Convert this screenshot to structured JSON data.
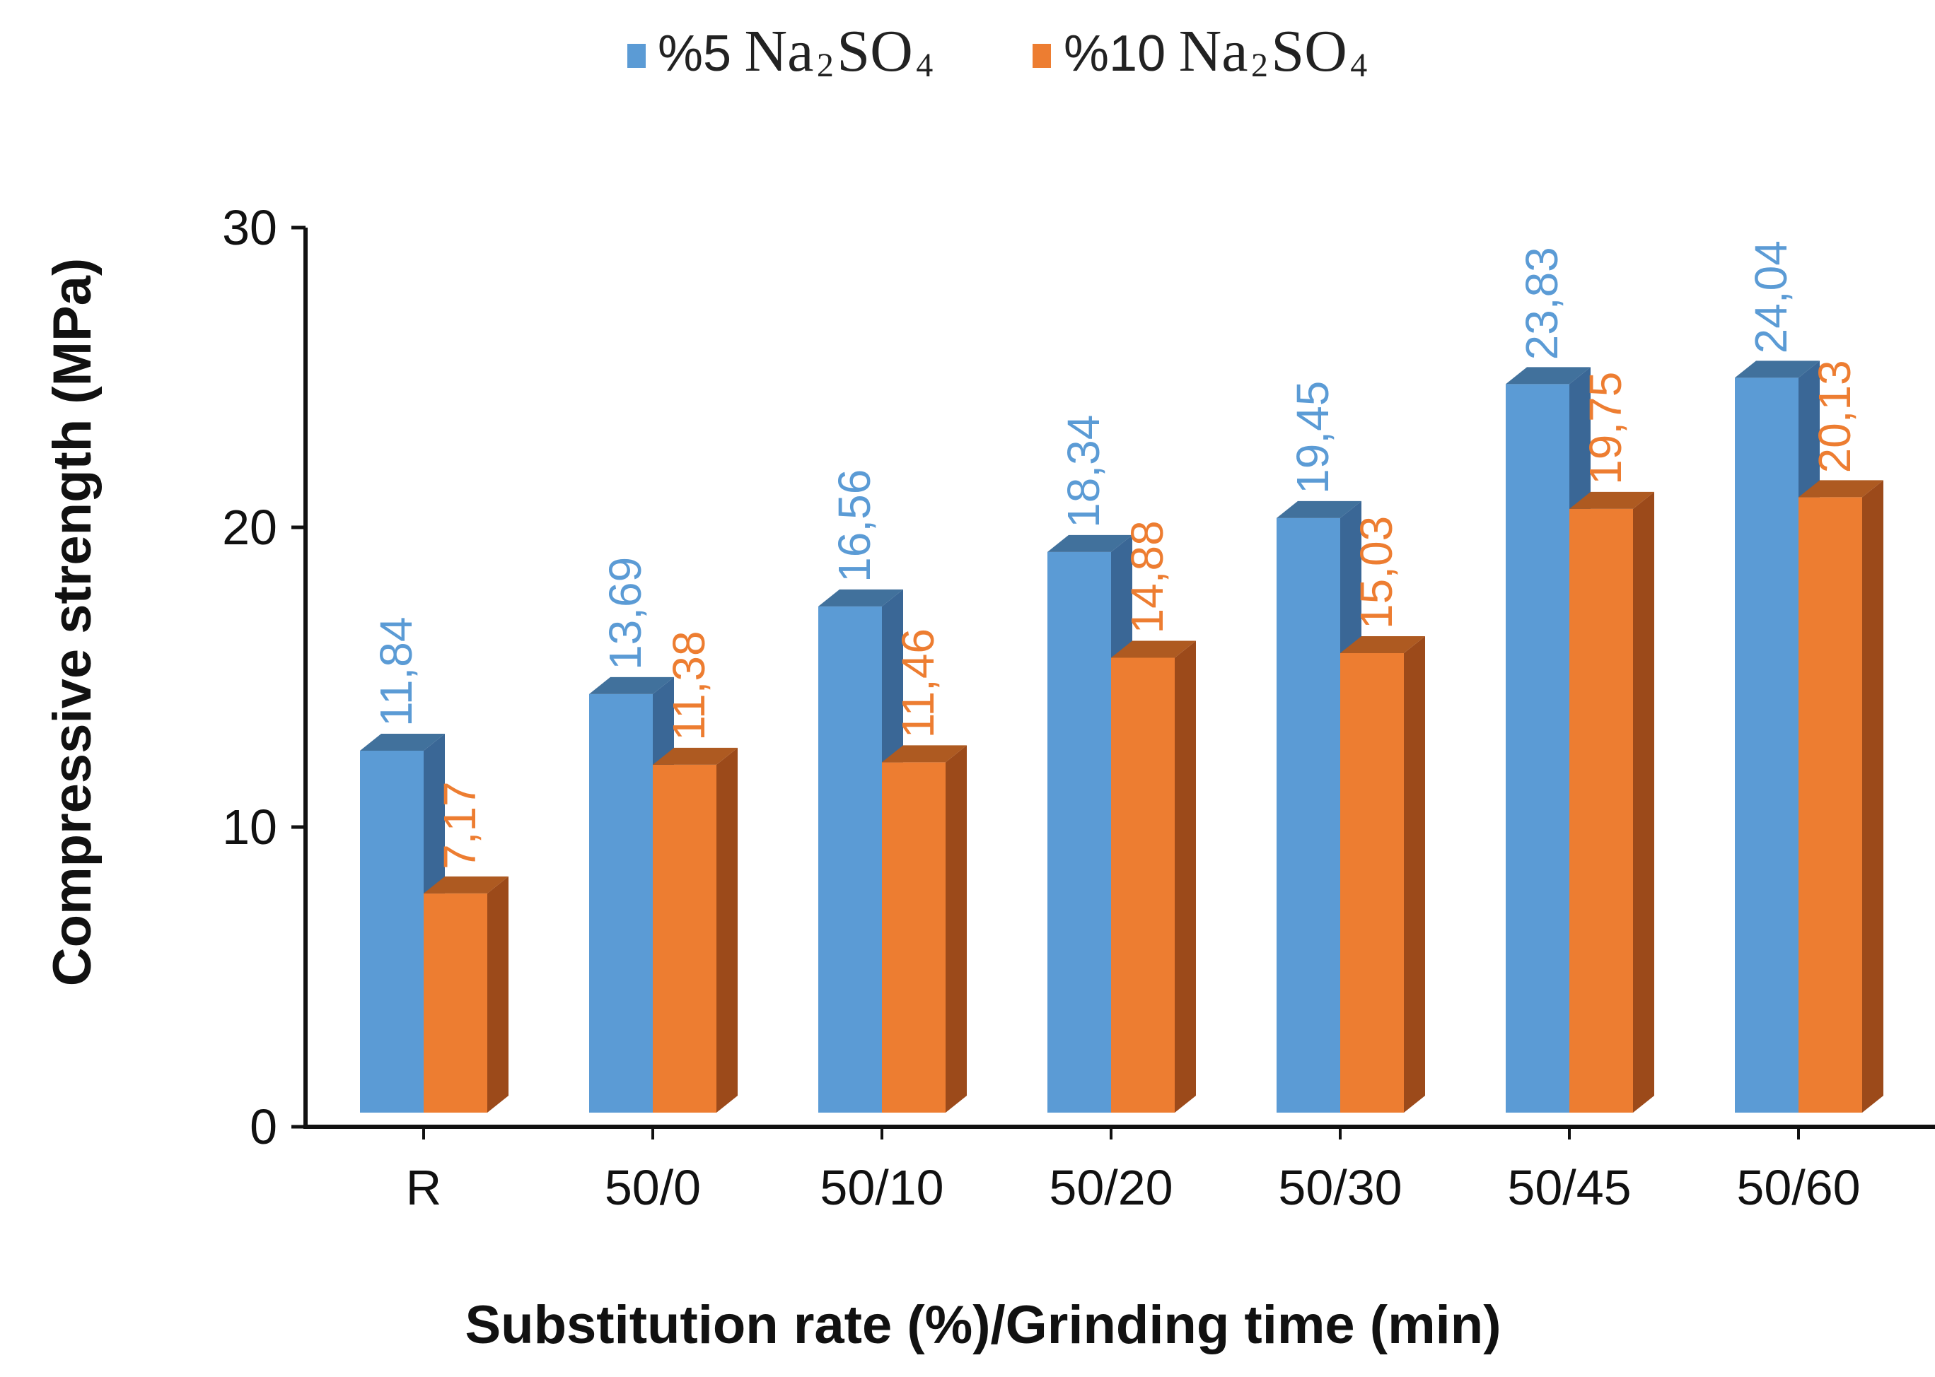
{
  "chart_data": {
    "type": "bar",
    "title": "",
    "xlabel": "Substitution  rate (%)/Grinding  time (min)",
    "ylabel": "Compressive  strength  (MPa)",
    "ylim": [
      0,
      30
    ],
    "yticks": [
      0,
      10,
      20,
      30
    ],
    "grid": false,
    "legend_position": "top-center",
    "categories": [
      "R",
      "50/0",
      "50/10",
      "50/20",
      "50/30",
      "50/45",
      "50/60"
    ],
    "series": [
      {
        "name": "%5 Na2SO4",
        "prefix": "%5",
        "formula_base": "Na",
        "formula_sub1": "2",
        "formula_mid": "SO",
        "formula_sub2": "4",
        "color": "#5b9bd5",
        "side_color": "#3a6796",
        "top_color": "#41719c",
        "label_color": "#5b9bd5",
        "values": [
          11.84,
          13.69,
          16.56,
          18.34,
          19.45,
          23.83,
          24.04
        ],
        "labels": [
          "11,84",
          "13,69",
          "16,56",
          "18,34",
          "19,45",
          "23,83",
          "24,04"
        ]
      },
      {
        "name": "%10 Na2SO4",
        "prefix": "%10",
        "formula_base": "Na",
        "formula_sub1": "2",
        "formula_mid": "SO",
        "formula_sub2": "4",
        "color": "#ed7d31",
        "side_color": "#9c4a1a",
        "top_color": "#ae5a21",
        "label_color": "#ed7d31",
        "values": [
          7.17,
          11.38,
          11.46,
          14.88,
          15.03,
          19.75,
          20.13
        ],
        "labels": [
          "7,17",
          "11,38",
          "11,46",
          "14,88",
          "15,03",
          "19,75",
          "20,13"
        ]
      }
    ]
  }
}
